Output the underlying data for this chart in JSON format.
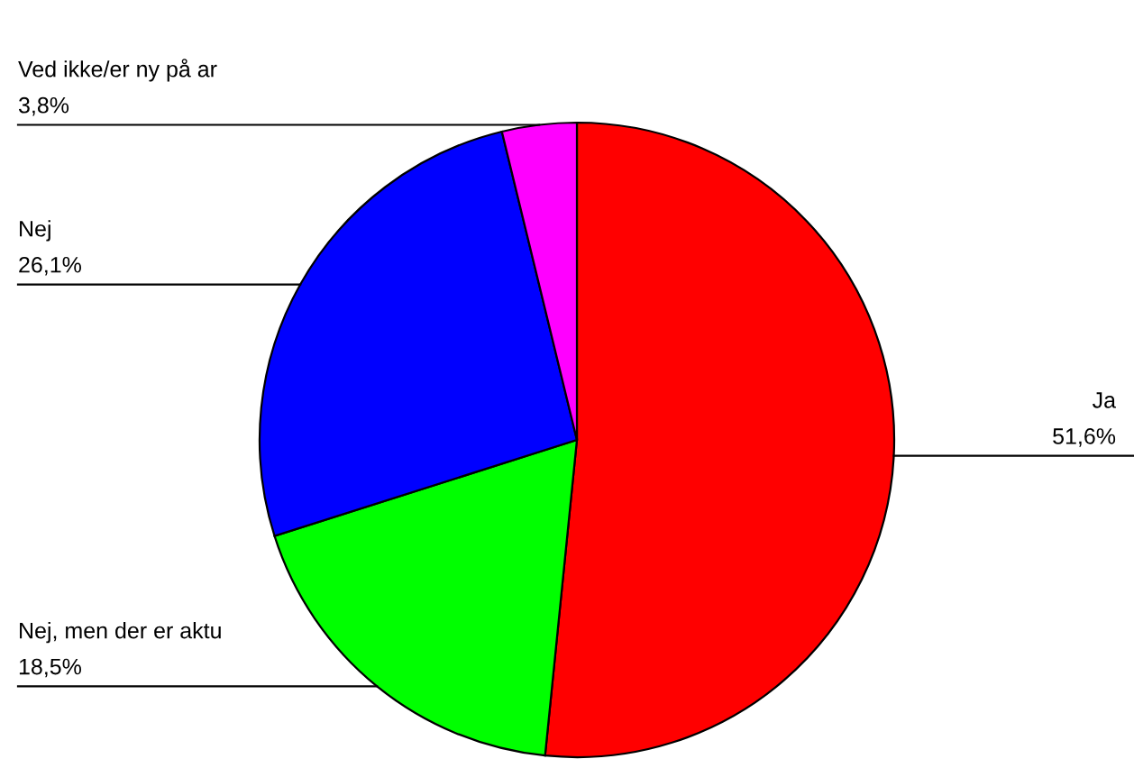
{
  "chart_data": {
    "type": "pie",
    "categories": [
      "Ja",
      "Nej, men der er aktu",
      "Nej",
      "Ved ikke/er ny på ar"
    ],
    "values": [
      51.6,
      18.5,
      26.1,
      3.8
    ],
    "value_labels": [
      "51,6%",
      "18,5%",
      "26,1%",
      "3,8%"
    ],
    "colors": [
      "#ff0000",
      "#00ff00",
      "#0000ff",
      "#ff00ff"
    ],
    "legend": false
  }
}
